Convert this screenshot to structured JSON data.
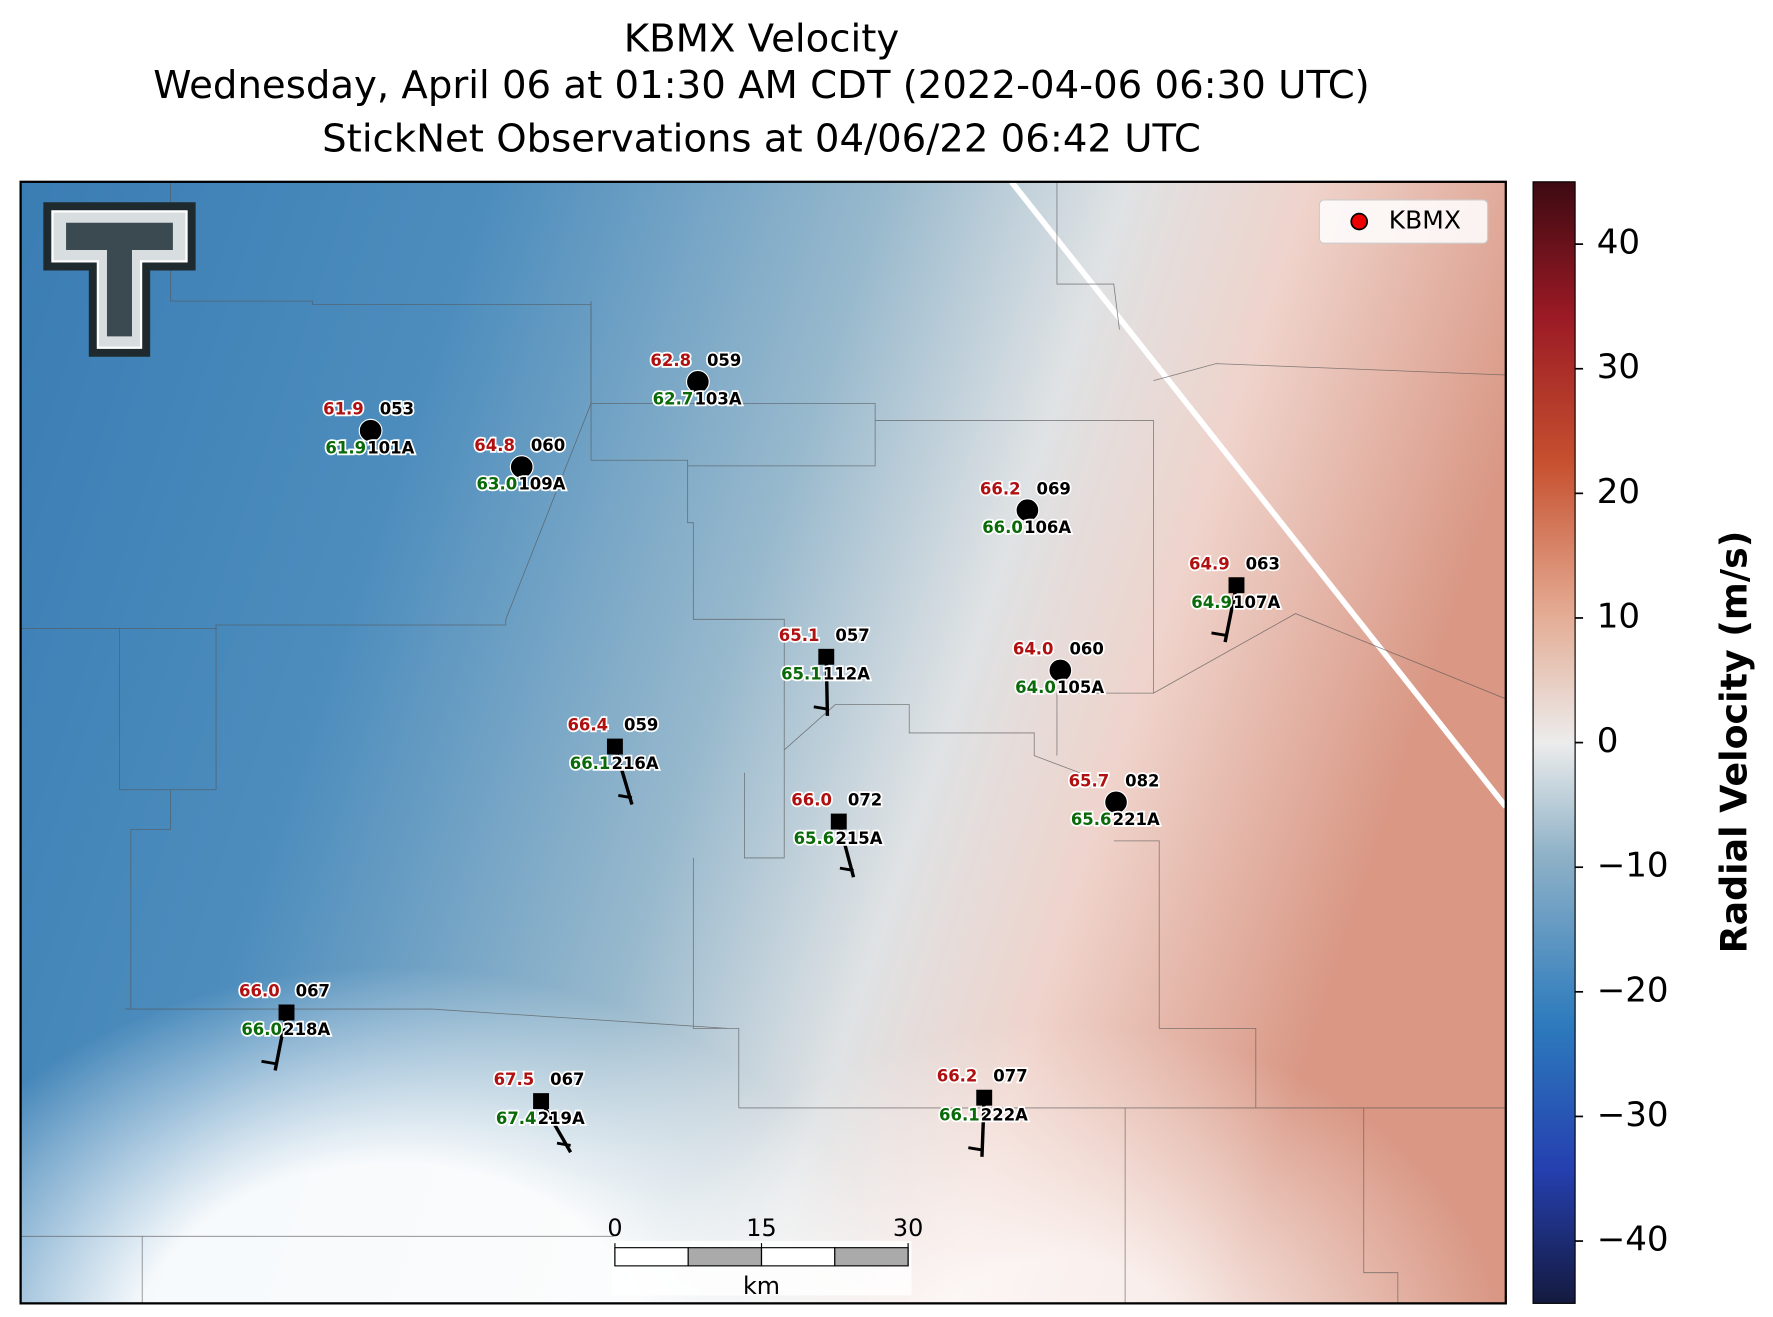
{
  "title": [
    "KBMX Velocity",
    "Wednesday, April 06 at 01:30 AM CDT (2022-04-06 06:30 UTC)",
    "StickNet Observations at 04/06/22 06:42 UTC"
  ],
  "legend": "KBMX",
  "stations": [
    {
      "id": "101A",
      "temperature": "61.9",
      "dewpoint": "61.9",
      "number": "053"
    },
    {
      "id": "109A",
      "temperature": "64.8",
      "dewpoint": "63.0",
      "number": "060"
    },
    {
      "id": "103A",
      "temperature": "62.8",
      "dewpoint": "62.7",
      "number": "059"
    },
    {
      "id": "106A",
      "temperature": "66.2",
      "dewpoint": "66.0",
      "number": "069"
    },
    {
      "id": "107A",
      "temperature": "64.9",
      "dewpoint": "64.9",
      "number": "063"
    },
    {
      "id": "112A",
      "temperature": "65.1",
      "dewpoint": "65.1",
      "number": "057"
    },
    {
      "id": "105A",
      "temperature": "64.0",
      "dewpoint": "64.0",
      "number": "060"
    },
    {
      "id": "216A",
      "temperature": "66.4",
      "dewpoint": "66.1",
      "number": "059"
    },
    {
      "id": "215A",
      "temperature": "66.0",
      "dewpoint": "65.6",
      "number": "072"
    },
    {
      "id": "221A",
      "temperature": "65.7",
      "dewpoint": "65.6",
      "number": "082"
    },
    {
      "id": "218A",
      "temperature": "66.0",
      "dewpoint": "66.0",
      "number": "067"
    },
    {
      "id": "219A",
      "temperature": "67.5",
      "dewpoint": "67.4",
      "number": "067"
    },
    {
      "id": "222A",
      "temperature": "66.2",
      "dewpoint": "66.1",
      "number": "077"
    }
  ],
  "colorbar": {
    "label": "Radial Velocity (m/s)",
    "ylim": [
      -45,
      45
    ],
    "yticks": [
      {
        "value": -40,
        "label": "−40"
      },
      {
        "value": -30,
        "label": "−30"
      },
      {
        "value": -20,
        "label": "−20"
      },
      {
        "value": -10,
        "label": "−10"
      },
      0,
      10,
      20,
      30,
      40
    ]
  },
  "scale_bar": {
    "ticks": [
      0,
      15,
      30
    ],
    "unit": "km"
  }
}
